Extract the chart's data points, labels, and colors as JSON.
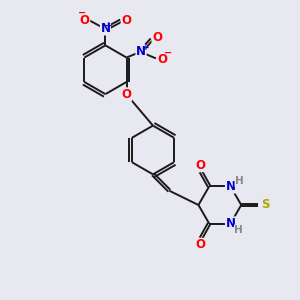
{
  "bg_color": "#e8e8f0",
  "bond_color": "#1a1a1a",
  "atom_colors": {
    "O": "#ff0000",
    "N": "#0000cc",
    "S": "#aaaa00",
    "H": "#888888",
    "C": "#1a1a1a"
  }
}
